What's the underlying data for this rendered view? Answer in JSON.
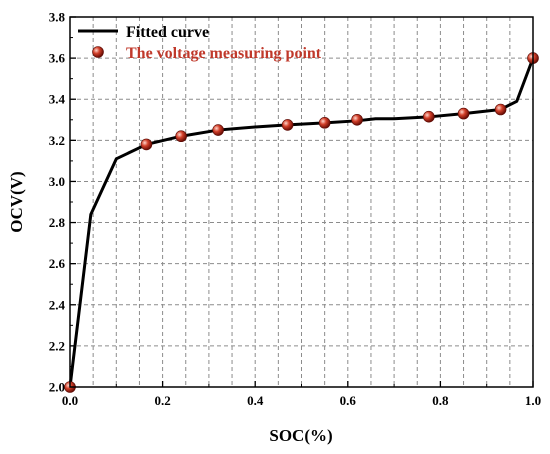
{
  "chart_data": {
    "type": "line",
    "xlabel": "SOC(%)",
    "ylabel": "OCV(V)",
    "xlim": [
      0.0,
      1.0
    ],
    "ylim": [
      2.0,
      3.8
    ],
    "x_ticks": [
      "0.0",
      "0.2",
      "0.4",
      "0.6",
      "0.8",
      "1.0"
    ],
    "y_ticks": [
      "2.0",
      "2.2",
      "2.4",
      "2.6",
      "2.8",
      "3.0",
      "3.2",
      "3.4",
      "3.6",
      "3.8"
    ],
    "grid": true,
    "legend_position": "top-left",
    "series": [
      {
        "name": "Fitted curve",
        "kind": "line",
        "color": "#000000",
        "x": [
          0.0,
          0.045,
          0.1,
          0.165,
          0.24,
          0.32,
          0.4,
          0.47,
          0.55,
          0.62,
          0.66,
          0.7,
          0.78,
          0.85,
          0.93,
          0.965,
          1.0
        ],
        "y": [
          2.0,
          2.84,
          3.11,
          3.18,
          3.22,
          3.25,
          3.265,
          3.275,
          3.285,
          3.295,
          3.305,
          3.305,
          3.315,
          3.33,
          3.35,
          3.39,
          3.6
        ]
      },
      {
        "name": "The voltage measuring point",
        "kind": "scatter",
        "color": "#c0392b",
        "x": [
          0.0,
          0.165,
          0.24,
          0.32,
          0.47,
          0.55,
          0.62,
          0.775,
          0.85,
          0.93,
          1.0
        ],
        "y": [
          2.0,
          3.18,
          3.22,
          3.25,
          3.275,
          3.285,
          3.3,
          3.315,
          3.33,
          3.35,
          3.6
        ]
      }
    ]
  }
}
